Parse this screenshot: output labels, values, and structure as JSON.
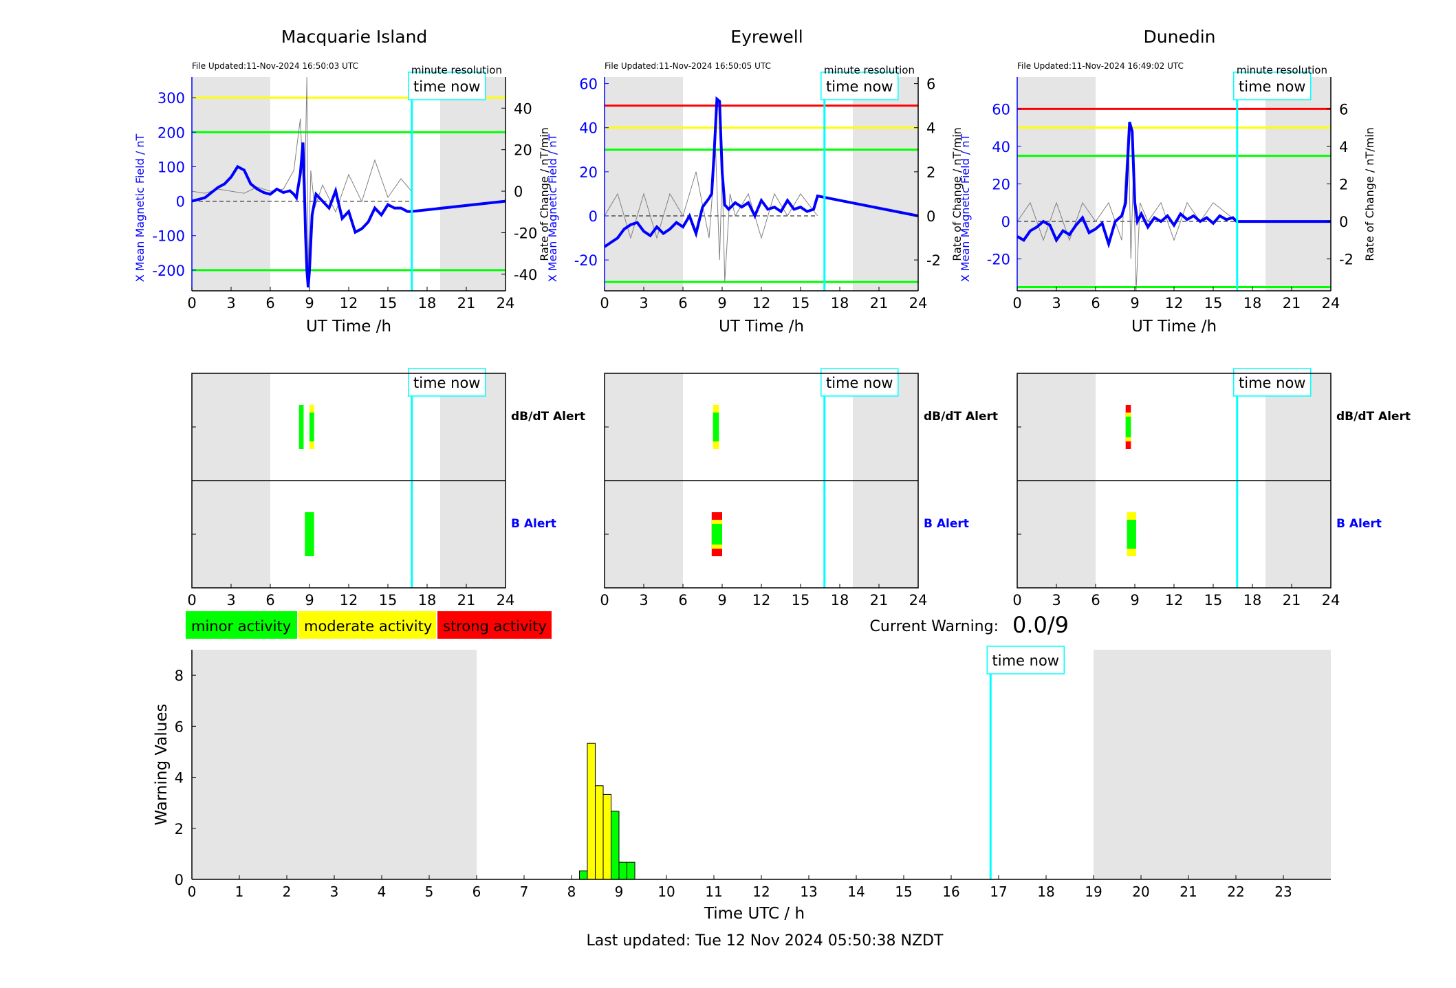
{
  "figure": {
    "last_updated": "Last updated: Tue 12 Nov 2024 05:50:38 NZDT",
    "current_warning_label": "Current Warning:",
    "current_warning_value": "0.0/9",
    "legend": [
      {
        "label": "minor activity",
        "color": "#00ff00"
      },
      {
        "label": "moderate activity",
        "color": "#ffff00"
      },
      {
        "label": "strong activity",
        "color": "#ff0000"
      }
    ],
    "time_now_label": "time now",
    "time_now_h": 16.83,
    "night_shading": [
      [
        0,
        6
      ],
      [
        19,
        24
      ]
    ],
    "colors": {
      "field": "#0000ff",
      "rate": "#808080",
      "time_now": "#00ffff",
      "shade": "#e5e5e5",
      "minor": "#00ff00",
      "moderate": "#ffff00",
      "strong": "#ff0000"
    },
    "alert_labels": {
      "dbdt": "dB/dT Alert",
      "b": "B Alert"
    }
  },
  "chart_data": [
    {
      "type": "line",
      "station": "Macquarie Island",
      "file_updated": "File Updated:11-Nov-2024 16:50:03 UTC",
      "resolution": "minute resolution",
      "xlabel": "UT Time /h",
      "ylabel_left": "X Mean Magnetic Field / nT",
      "ylabel_right": "Rate of Change / nT/min",
      "xlim": [
        0,
        24
      ],
      "xticks": [
        0,
        3,
        6,
        9,
        12,
        15,
        18,
        21,
        24
      ],
      "ylim_left": [
        -260,
        360
      ],
      "yticks_left": [
        -200,
        -100,
        0,
        100,
        200,
        300
      ],
      "ylim_right": [
        -48,
        55
      ],
      "yticks_right": [
        -40,
        -20,
        0,
        20,
        40
      ],
      "thresholds": [
        {
          "value": 300,
          "color": "#ffff00"
        },
        {
          "value": 200,
          "color": "#00ff00"
        },
        {
          "value": -200,
          "color": "#00ff00"
        }
      ],
      "field_series": {
        "x": [
          0,
          0.5,
          1,
          1.5,
          2,
          2.5,
          3,
          3.5,
          4,
          4.5,
          5,
          5.5,
          6,
          6.5,
          7,
          7.5,
          7.8,
          8,
          8.3,
          8.5,
          8.6,
          8.7,
          8.8,
          8.9,
          9,
          9.2,
          9.5,
          10,
          10.5,
          11,
          11.5,
          12,
          12.5,
          13,
          13.5,
          14,
          14.5,
          15,
          15.5,
          16,
          16.5,
          16.8,
          24
        ],
        "y": [
          0,
          5,
          10,
          25,
          40,
          50,
          70,
          100,
          90,
          50,
          35,
          25,
          20,
          35,
          25,
          30,
          20,
          10,
          80,
          170,
          50,
          -100,
          -200,
          -250,
          -200,
          -40,
          20,
          0,
          -20,
          30,
          -50,
          -30,
          -90,
          -80,
          -60,
          -20,
          -40,
          -10,
          -20,
          -20,
          -30,
          -30,
          0
        ]
      },
      "rate_series": {
        "x": [
          0,
          1,
          2,
          3,
          4,
          5,
          6,
          7,
          7.8,
          8.3,
          8.6,
          8.8,
          8.9,
          9.1,
          9.4,
          10,
          11,
          12,
          13,
          14,
          15,
          16,
          16.8
        ],
        "y": [
          0,
          -1,
          1,
          0,
          -1,
          2,
          0,
          1,
          10,
          35,
          -10,
          60,
          -40,
          10,
          -8,
          3,
          -10,
          8,
          -5,
          15,
          -3,
          6,
          0
        ]
      },
      "alerts": {
        "dbdt": [
          {
            "start": 8.2,
            "end": 8.55,
            "color": "#00ff00"
          },
          {
            "start": 9.0,
            "end": 9.35,
            "color": "#ffff00"
          },
          {
            "start": 9.0,
            "end": 9.35,
            "color": "#00ff00",
            "inner": true
          }
        ],
        "b": [
          {
            "start": 8.65,
            "end": 9.35,
            "color": "#00ff00"
          }
        ]
      }
    },
    {
      "type": "line",
      "station": "Eyrewell",
      "file_updated": "File Updated:11-Nov-2024 16:50:05 UTC",
      "resolution": "minute resolution",
      "xlabel": "UT Time /h",
      "ylabel_left": "X Mean Magnetic Field / nT",
      "ylabel_right": "Rate of Change / nT/min",
      "xlim": [
        0,
        24
      ],
      "xticks": [
        0,
        3,
        6,
        9,
        12,
        15,
        18,
        21,
        24
      ],
      "ylim_left": [
        -34,
        63
      ],
      "yticks_left": [
        -20,
        0,
        20,
        40,
        60
      ],
      "ylim_right": [
        -3.4,
        6.3
      ],
      "yticks_right": [
        -2,
        0,
        2,
        4,
        6
      ],
      "thresholds": [
        {
          "value": 50,
          "color": "#ff0000"
        },
        {
          "value": 40,
          "color": "#ffff00"
        },
        {
          "value": 30,
          "color": "#00ff00"
        },
        {
          "value": -30,
          "color": "#00ff00"
        }
      ],
      "field_series": {
        "x": [
          0,
          0.5,
          1,
          1.5,
          2,
          2.5,
          3,
          3.5,
          4,
          4.5,
          5,
          5.5,
          6,
          6.5,
          7,
          7.5,
          8,
          8.2,
          8.4,
          8.6,
          8.8,
          9.0,
          9.2,
          9.5,
          10,
          10.5,
          11,
          11.5,
          12,
          12.5,
          13,
          13.5,
          14,
          14.5,
          15,
          15.5,
          16,
          16.3,
          24
        ],
        "y": [
          -14,
          -12,
          -10,
          -6,
          -4,
          -3,
          -7,
          -9,
          -5,
          -8,
          -6,
          -3,
          -5,
          0,
          -8,
          4,
          8,
          10,
          30,
          53,
          52,
          20,
          5,
          3,
          6,
          4,
          6,
          0,
          7,
          3,
          4,
          2,
          7,
          3,
          4,
          2,
          3,
          9,
          0
        ]
      },
      "rate_series": {
        "x": [
          0,
          1,
          2,
          3,
          4,
          5,
          6,
          7,
          8,
          8.5,
          8.8,
          9.0,
          9.2,
          9.6,
          10,
          11,
          12,
          13,
          14,
          15,
          16.3
        ],
        "y": [
          0,
          1,
          -1,
          1,
          -1,
          1,
          0,
          2,
          -1,
          3,
          -2,
          2,
          -3,
          1,
          0,
          1,
          -1,
          1,
          0,
          1,
          0
        ]
      },
      "alerts": {
        "dbdt": [
          {
            "start": 8.3,
            "end": 8.75,
            "color": "#ffff00"
          },
          {
            "start": 8.3,
            "end": 8.75,
            "color": "#00ff00",
            "inner": true
          }
        ],
        "b": [
          {
            "start": 8.2,
            "end": 9.0,
            "color": "#ff0000"
          },
          {
            "start": 8.2,
            "end": 9.0,
            "color": "#ffff00",
            "inner": true
          },
          {
            "start": 8.2,
            "end": 9.0,
            "color": "#00ff00",
            "core": true
          }
        ]
      }
    },
    {
      "type": "line",
      "station": "Dunedin",
      "file_updated": "File Updated:11-Nov-2024 16:49:02 UTC",
      "resolution": "minute resolution",
      "xlabel": "UT Time /h",
      "ylabel_left": "X Mean Magnetic Field / nT",
      "ylabel_right": "Rate of Change / nT/min",
      "xlim": [
        0,
        24
      ],
      "xticks": [
        0,
        3,
        6,
        9,
        12,
        15,
        18,
        21,
        24
      ],
      "ylim_left": [
        -37,
        77
      ],
      "yticks_left": [
        -20,
        0,
        20,
        40,
        60
      ],
      "ylim_right": [
        -3.7,
        7.7
      ],
      "yticks_right": [
        -2,
        0,
        2,
        4,
        6
      ],
      "thresholds": [
        {
          "value": 60,
          "color": "#ff0000"
        },
        {
          "value": 50,
          "color": "#ffff00"
        },
        {
          "value": 35,
          "color": "#00ff00"
        },
        {
          "value": -35,
          "color": "#00ff00"
        }
      ],
      "field_series": {
        "x": [
          0,
          0.5,
          1,
          1.5,
          2,
          2.5,
          3,
          3.5,
          4,
          4.5,
          5,
          5.5,
          6,
          6.5,
          7,
          7.5,
          8,
          8.3,
          8.6,
          8.8,
          9.0,
          9.2,
          9.5,
          10,
          10.5,
          11,
          11.5,
          12,
          12.5,
          13,
          13.5,
          14,
          14.5,
          15,
          15.5,
          16,
          16.5,
          16.8,
          24
        ],
        "y": [
          -8,
          -10,
          -5,
          -3,
          0,
          -2,
          -10,
          -5,
          -7,
          -2,
          2,
          -6,
          -4,
          -1,
          -12,
          0,
          3,
          10,
          53,
          48,
          10,
          0,
          4,
          -3,
          2,
          0,
          3,
          -2,
          4,
          1,
          3,
          0,
          2,
          -1,
          3,
          1,
          2,
          0,
          0
        ]
      },
      "rate_series": {
        "x": [
          0,
          1,
          2,
          3,
          4,
          5,
          6,
          7,
          8,
          8.5,
          8.7,
          8.9,
          9.1,
          9.4,
          10,
          11,
          12,
          13,
          14,
          15,
          16.8
        ],
        "y": [
          0,
          1,
          -1,
          1,
          -1,
          1,
          0,
          1,
          -1,
          5,
          -2,
          3,
          -6,
          1,
          0,
          1,
          -1,
          1,
          0,
          1,
          0
        ]
      },
      "alerts": {
        "dbdt": [
          {
            "start": 8.3,
            "end": 8.7,
            "color": "#ff0000"
          },
          {
            "start": 8.3,
            "end": 8.7,
            "color": "#ffff00",
            "inner": true
          },
          {
            "start": 8.3,
            "end": 8.7,
            "color": "#00ff00",
            "core": true
          }
        ],
        "b": [
          {
            "start": 8.4,
            "end": 9.1,
            "color": "#ffff00"
          },
          {
            "start": 8.4,
            "end": 9.1,
            "color": "#00ff00",
            "inner": true
          }
        ]
      }
    },
    {
      "type": "bar",
      "name": "warning-values",
      "xlabel": "Time UTC / h",
      "ylabel": "Warning Values",
      "xlim": [
        0,
        24
      ],
      "xticks": [
        0,
        1,
        2,
        3,
        4,
        5,
        6,
        7,
        8,
        9,
        10,
        11,
        12,
        13,
        14,
        15,
        16,
        17,
        18,
        19,
        20,
        21,
        22,
        23
      ],
      "ylim": [
        0,
        9
      ],
      "yticks": [
        0,
        2,
        4,
        6,
        8
      ],
      "bin_width_h": 0.1667,
      "bars": [
        {
          "x": 8.167,
          "value": 0.33,
          "color": "#00ff00"
        },
        {
          "x": 8.333,
          "value": 5.33,
          "color": "#ffff00"
        },
        {
          "x": 8.5,
          "value": 3.67,
          "color": "#ffff00"
        },
        {
          "x": 8.667,
          "value": 3.33,
          "color": "#ffff00"
        },
        {
          "x": 8.833,
          "value": 2.67,
          "color": "#00ff00"
        },
        {
          "x": 9.0,
          "value": 0.67,
          "color": "#00ff00"
        },
        {
          "x": 9.167,
          "value": 0.67,
          "color": "#00ff00"
        }
      ]
    }
  ]
}
